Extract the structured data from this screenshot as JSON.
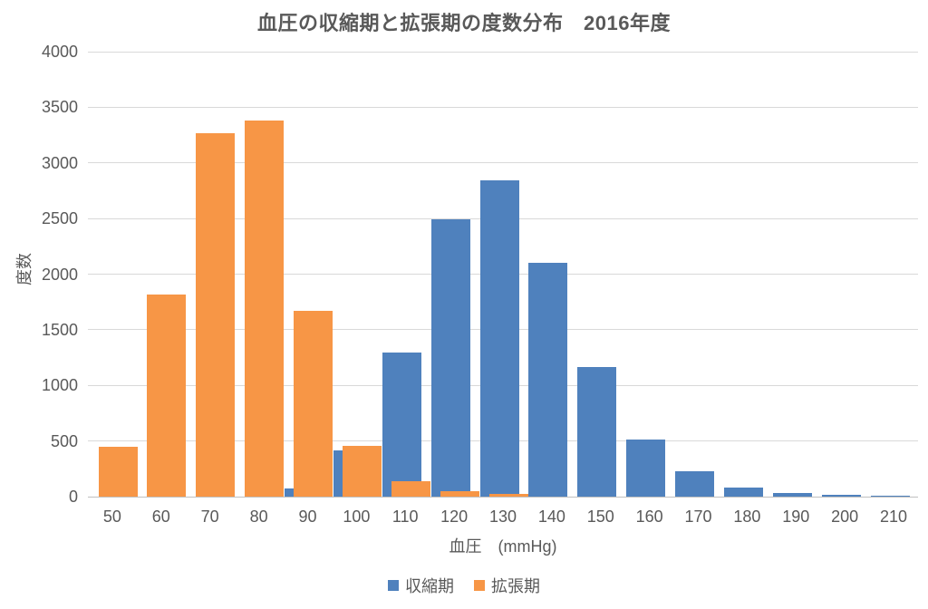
{
  "chart_data": {
    "type": "bar",
    "title": "血圧の収縮期と拡張期の度数分布　2016年度",
    "ylabel": "度数",
    "xlabel": "血圧　(mmHg)",
    "categories": [
      50,
      60,
      70,
      80,
      90,
      100,
      110,
      120,
      130,
      140,
      150,
      160,
      170,
      180,
      190,
      200,
      210
    ],
    "series": [
      {
        "name": "収縮期",
        "color": "#4f81bd",
        "values": [
          0,
          0,
          0,
          0,
          75,
          415,
          1295,
          2490,
          2845,
          2100,
          1165,
          510,
          230,
          80,
          30,
          15,
          10
        ]
      },
      {
        "name": "拡張期",
        "color": "#f79646",
        "values": [
          450,
          1820,
          3270,
          3380,
          1670,
          455,
          135,
          45,
          25,
          0,
          0,
          0,
          0,
          0,
          0,
          0,
          0
        ]
      }
    ],
    "ylim": [
      0,
      4000
    ],
    "yticks": [
      0,
      500,
      1000,
      1500,
      2000,
      2500,
      3000,
      3500,
      4000
    ],
    "grid": true,
    "legend_position": "bottom",
    "series_overlap_note": "orange (拡張期) bars drawn in front of blue, offset right"
  },
  "style": {
    "background": "#ffffff",
    "text_color": "#595959",
    "grid_color": "#d9d9d9",
    "axis_line_color": "#c0c0c0",
    "systolic_color": "#4f81bd",
    "diastolic_color": "#f79646"
  }
}
